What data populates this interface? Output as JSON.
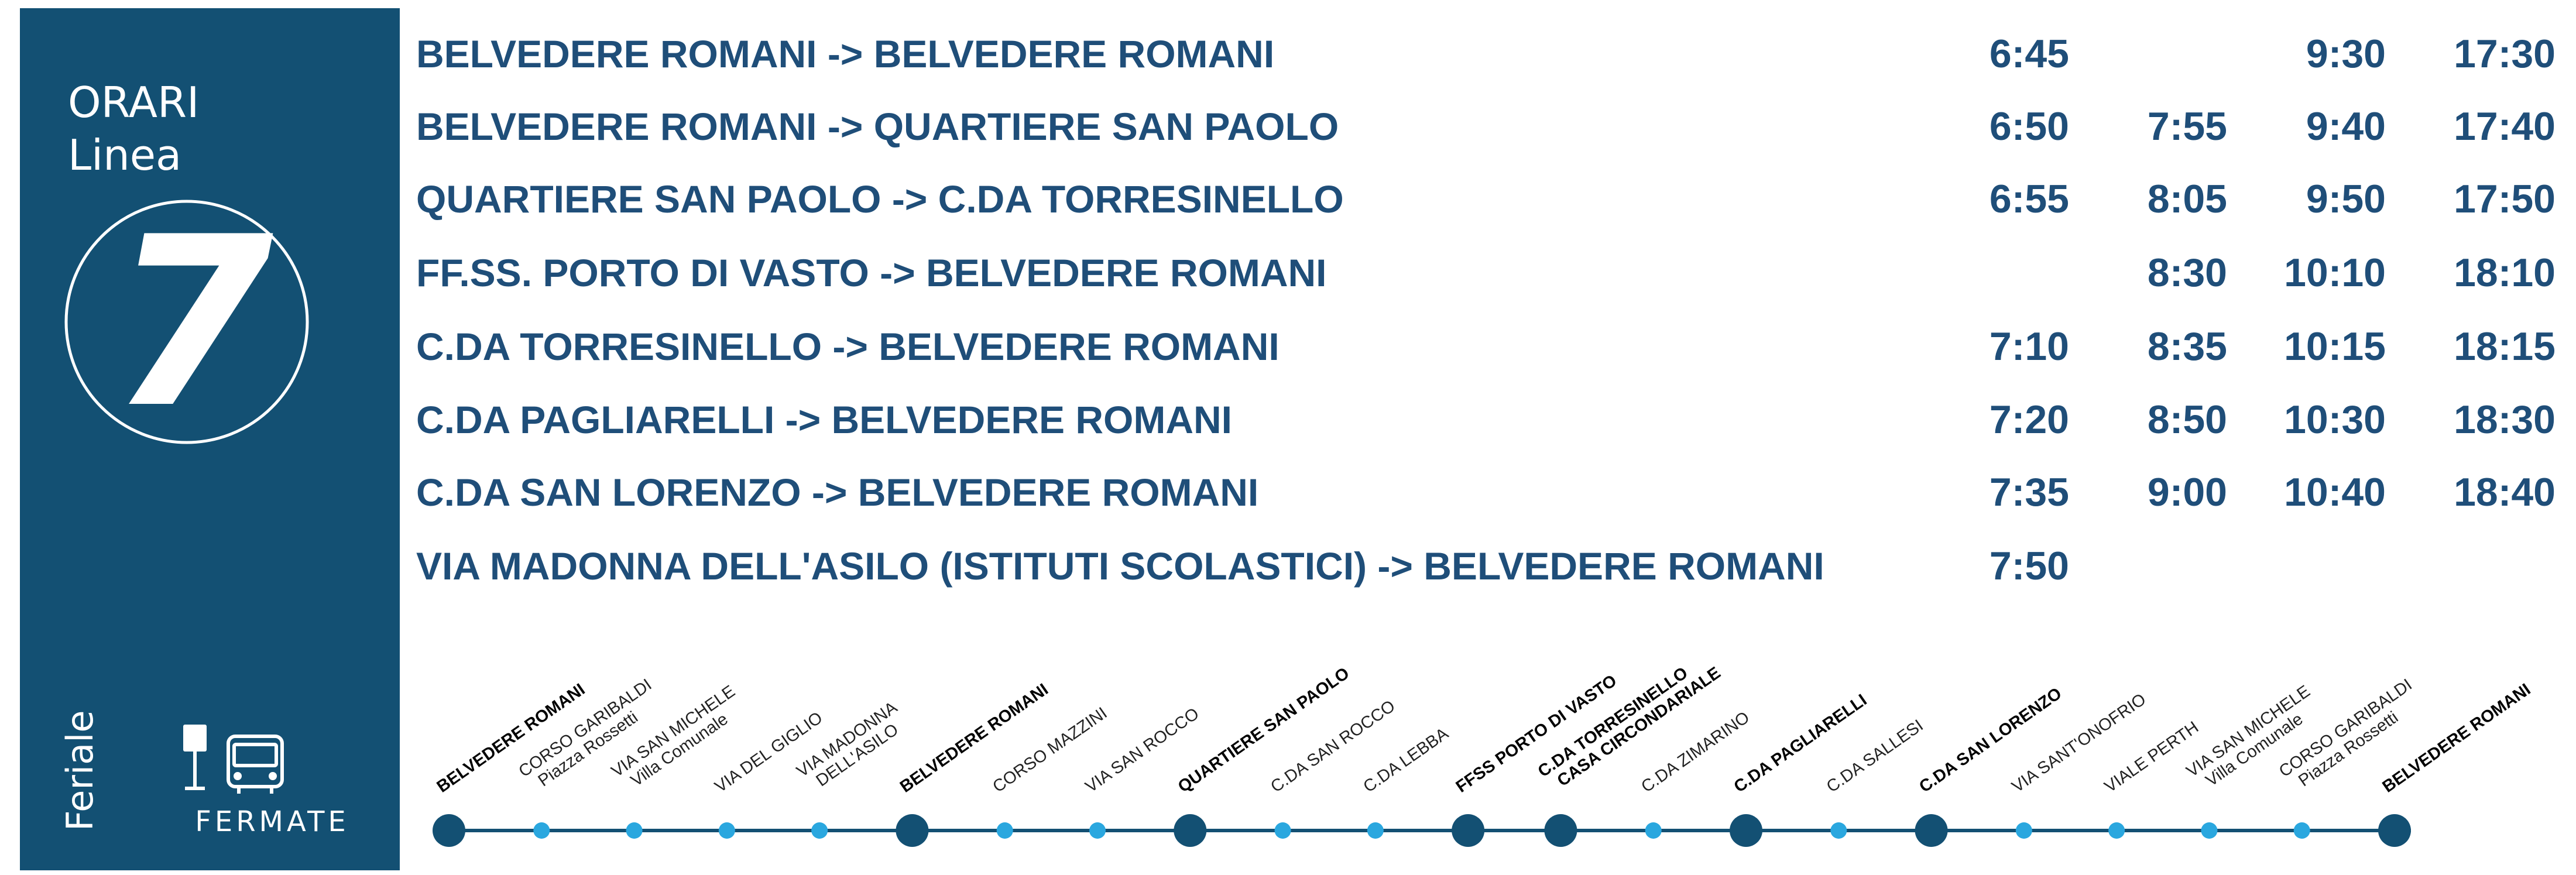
{
  "panel": {
    "title": "ORARI",
    "subtitle": "Linea",
    "line_number": "7",
    "day_type": "Feriale",
    "stops_label": "FERMATE"
  },
  "schedule": {
    "rows": [
      {
        "route": "BELVEDERE ROMANI -> BELVEDERE ROMANI",
        "times": [
          "6:45",
          null,
          "9:30",
          "17:30"
        ]
      },
      {
        "route": "BELVEDERE ROMANI -> QUARTIERE SAN PAOLO",
        "times": [
          "6:50",
          "7:55",
          "9:40",
          "17:40"
        ]
      },
      {
        "route": "QUARTIERE SAN PAOLO -> C.DA TORRESINELLO",
        "times": [
          "6:55",
          "8:05",
          "9:50",
          "17:50"
        ]
      },
      {
        "route": "FF.SS. PORTO DI VASTO -> BELVEDERE ROMANI",
        "times": [
          null,
          "8:30",
          "10:10",
          "18:10"
        ]
      },
      {
        "route": "C.DA TORRESINELLO -> BELVEDERE ROMANI",
        "times": [
          "7:10",
          "8:35",
          "10:15",
          "18:15"
        ]
      },
      {
        "route": "C.DA PAGLIARELLI -> BELVEDERE ROMANI",
        "times": [
          "7:20",
          "8:50",
          "10:30",
          "18:30"
        ]
      },
      {
        "route": "C.DA SAN LORENZO -> BELVEDERE ROMANI",
        "times": [
          "7:35",
          "9:00",
          "10:40",
          "18:40"
        ]
      },
      {
        "route": "VIA MADONNA DELL'ASILO (ISTITUTI SCOLASTICI) -> BELVEDERE ROMANI",
        "times": [
          "7:50"
        ]
      }
    ]
  },
  "stops": [
    {
      "lines": [
        "BELVEDERE ROMANI"
      ],
      "major": true
    },
    {
      "lines": [
        "CORSO GARIBALDI",
        "Piazza Rossetti"
      ],
      "major": false
    },
    {
      "lines": [
        "VIA SAN MICHELE",
        "Villa Comunale"
      ],
      "major": false
    },
    {
      "lines": [
        "VIA DEL GIGLIO"
      ],
      "major": false
    },
    {
      "lines": [
        "VIA MADONNA",
        "DELL'ASILO"
      ],
      "major": false
    },
    {
      "lines": [
        "BELVEDERE ROMANI"
      ],
      "major": true
    },
    {
      "lines": [
        "CORSO MAZZINI"
      ],
      "major": false
    },
    {
      "lines": [
        "VIA SAN ROCCO"
      ],
      "major": false
    },
    {
      "lines": [
        "QUARTIERE SAN PAOLO"
      ],
      "major": true
    },
    {
      "lines": [
        "C.DA SAN ROCCO"
      ],
      "major": false
    },
    {
      "lines": [
        "C.DA LEBBA"
      ],
      "major": false
    },
    {
      "lines": [
        "FFSS PORTO DI VASTO"
      ],
      "major": true
    },
    {
      "lines": [
        "C.DA TORRESINELLO",
        "CASA CIRCONDARIALE"
      ],
      "major": true
    },
    {
      "lines": [
        "C.DA ZIMARINO"
      ],
      "major": false
    },
    {
      "lines": [
        "C.DA PAGLIARELLI"
      ],
      "major": true
    },
    {
      "lines": [
        "C.DA SALLESI"
      ],
      "major": false
    },
    {
      "lines": [
        "C.DA SAN LORENZO"
      ],
      "major": true
    },
    {
      "lines": [
        "VIA SANT'ONOFRIO"
      ],
      "major": false
    },
    {
      "lines": [
        "VIALE PERTH"
      ],
      "major": false
    },
    {
      "lines": [
        "VIA SAN MICHELE",
        "Villa Comunale"
      ],
      "major": false
    },
    {
      "lines": [
        "CORSO GARIBALDI",
        "Piazza Rossetti"
      ],
      "major": false
    },
    {
      "lines": [
        "BELVEDERE ROMANI"
      ],
      "major": true
    }
  ]
}
